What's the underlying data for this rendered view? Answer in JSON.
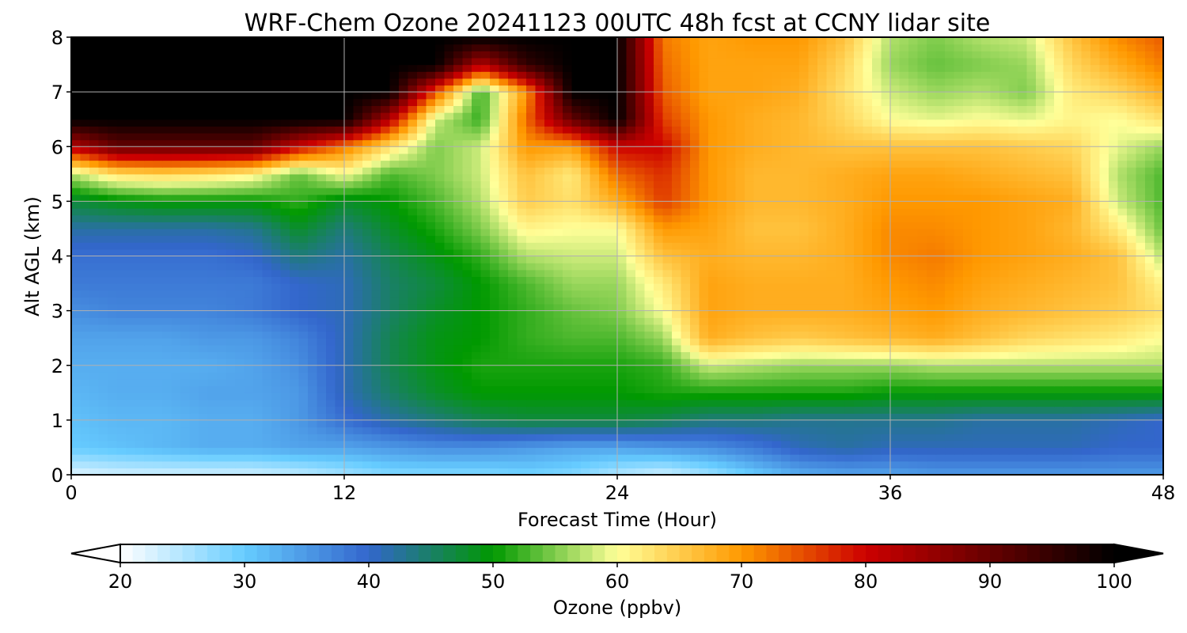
{
  "chart_data": {
    "type": "heatmap",
    "title": "WRF-Chem Ozone  20241123 00UTC 48h fcst at CCNY lidar site",
    "xlabel": "Forecast Time (Hour)",
    "ylabel": "Alt AGL (km)",
    "xlim": [
      0,
      48
    ],
    "ylim": [
      0,
      8
    ],
    "xticks": [
      0,
      12,
      24,
      36,
      48
    ],
    "yticks": [
      0,
      1,
      2,
      3,
      4,
      5,
      6,
      7,
      8
    ],
    "grid": true,
    "colorbar": {
      "label": "Ozone  (ppbv)",
      "range": [
        20,
        100
      ],
      "ticks": [
        20,
        30,
        40,
        50,
        60,
        70,
        80,
        90,
        100
      ],
      "extend": "both",
      "colors": [
        "#ffffff",
        "#66ccff",
        "#3366cc",
        "#009900",
        "#ffff99",
        "#ff9900",
        "#cc0000",
        "#000000"
      ],
      "color_stops": [
        20,
        30,
        40,
        50,
        60,
        70,
        80,
        100
      ]
    },
    "x": [
      0,
      2,
      4,
      6,
      8,
      10,
      12,
      14,
      16,
      18,
      20,
      22,
      24,
      26,
      28,
      30,
      32,
      34,
      36,
      38,
      40,
      42,
      44,
      46,
      48
    ],
    "y": [
      0,
      0.5,
      1,
      1.5,
      2,
      2.5,
      3,
      3.5,
      4,
      4.5,
      5,
      5.5,
      6,
      6.5,
      7,
      7.5,
      8
    ],
    "z": [
      [
        22,
        23,
        23,
        23,
        23,
        24,
        26,
        28,
        28,
        28,
        29,
        28,
        25,
        23,
        26,
        30,
        33,
        34,
        34,
        35,
        35,
        35,
        35,
        35,
        35
      ],
      [
        30,
        31,
        32,
        33,
        33,
        34,
        34,
        35,
        36,
        36,
        35,
        34,
        34,
        35,
        36,
        38,
        41,
        42,
        41,
        41,
        41,
        41,
        41,
        40,
        40
      ],
      [
        31,
        32,
        32,
        33,
        33,
        35,
        39,
        42,
        44,
        46,
        47,
        47,
        47,
        46,
        44,
        44,
        43,
        43,
        43,
        43,
        42,
        42,
        42,
        41,
        40
      ],
      [
        32,
        33,
        33,
        34,
        34,
        35,
        41,
        45,
        48,
        50,
        50,
        50,
        50,
        51,
        51,
        51,
        51,
        51,
        50,
        50,
        50,
        50,
        50,
        50,
        50
      ],
      [
        33,
        33,
        33,
        33,
        34,
        36,
        41,
        46,
        49,
        51,
        51,
        51,
        51,
        52,
        58,
        57,
        56,
        56,
        56,
        57,
        57,
        57,
        57,
        57,
        57
      ],
      [
        34,
        34,
        34,
        35,
        35,
        37,
        41,
        46,
        49,
        50,
        52,
        53,
        53,
        56,
        68,
        66,
        65,
        66,
        67,
        68,
        66,
        64,
        63,
        62,
        60
      ],
      [
        36,
        37,
        37,
        37,
        38,
        40,
        41,
        45,
        48,
        50,
        52,
        54,
        55,
        60,
        69,
        68,
        68,
        68,
        69,
        70,
        68,
        67,
        66,
        65,
        63
      ],
      [
        38,
        38,
        38,
        38,
        38,
        40,
        41,
        45,
        47,
        50,
        53,
        56,
        56,
        62,
        69,
        68,
        68,
        68,
        70,
        71,
        69,
        68,
        67,
        66,
        61
      ],
      [
        39,
        39,
        39,
        39,
        40,
        44,
        42,
        46,
        49,
        52,
        57,
        58,
        58,
        66,
        68,
        67,
        67,
        68,
        71,
        72,
        70,
        69,
        68,
        66,
        57
      ],
      [
        42,
        42,
        42,
        42,
        43,
        48,
        44,
        48,
        51,
        55,
        61,
        60,
        60,
        70,
        69,
        66,
        66,
        68,
        71,
        71,
        70,
        69,
        67,
        62,
        54
      ],
      [
        47,
        49,
        50,
        50,
        50,
        52,
        48,
        50,
        53,
        57,
        65,
        63,
        68,
        76,
        70,
        67,
        67,
        68,
        70,
        70,
        70,
        69,
        68,
        58,
        53
      ],
      [
        57,
        63,
        64,
        63,
        61,
        54,
        60,
        53,
        55,
        58,
        66,
        62,
        73,
        77,
        70,
        67,
        67,
        68,
        69,
        69,
        68,
        67,
        66,
        57,
        53
      ],
      [
        82,
        90,
        90,
        90,
        90,
        80,
        72,
        63,
        55,
        58,
        70,
        69,
        80,
        80,
        70,
        68,
        67,
        66,
        66,
        66,
        66,
        65,
        64,
        59,
        56
      ],
      [
        100,
        100,
        100,
        100,
        100,
        100,
        100,
        82,
        58,
        52,
        73,
        90,
        100,
        76,
        70,
        68,
        67,
        64,
        60,
        59,
        60,
        59,
        61,
        60,
        63
      ],
      [
        100,
        100,
        100,
        100,
        100,
        100,
        100,
        100,
        75,
        52,
        70,
        100,
        100,
        74,
        69,
        69,
        68,
        63,
        58,
        56,
        57,
        55,
        62,
        64,
        68
      ],
      [
        100,
        100,
        100,
        100,
        100,
        100,
        100,
        100,
        100,
        82,
        95,
        100,
        100,
        73,
        69,
        69,
        69,
        64,
        56,
        54,
        55,
        56,
        64,
        68,
        72
      ],
      [
        100,
        100,
        100,
        100,
        100,
        100,
        100,
        100,
        100,
        100,
        100,
        100,
        100,
        72,
        69,
        70,
        70,
        66,
        57,
        55,
        57,
        58,
        66,
        71,
        74
      ]
    ]
  }
}
